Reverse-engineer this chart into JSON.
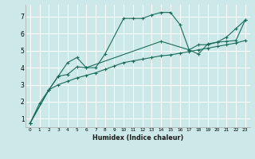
{
  "title": "",
  "xlabel": "Humidex (Indice chaleur)",
  "ylabel": "",
  "bg_color": "#cce8e8",
  "line_color": "#1a6b5a",
  "grid_color": "#ffffff",
  "xlim": [
    -0.5,
    23.5
  ],
  "ylim": [
    0.5,
    7.7
  ],
  "xticks": [
    0,
    1,
    2,
    3,
    4,
    5,
    6,
    7,
    8,
    9,
    10,
    11,
    12,
    13,
    14,
    15,
    16,
    17,
    18,
    19,
    20,
    21,
    22,
    23
  ],
  "yticks": [
    1,
    2,
    3,
    4,
    5,
    6,
    7
  ],
  "curve1_x": [
    0,
    1,
    2,
    3,
    4,
    5,
    6,
    7,
    8,
    10,
    11,
    12,
    13,
    14,
    15,
    16,
    17,
    18,
    19,
    20,
    21,
    22,
    23
  ],
  "curve1_y": [
    0.75,
    1.9,
    2.7,
    3.5,
    4.3,
    4.6,
    4.0,
    4.0,
    4.8,
    6.9,
    6.9,
    6.9,
    7.1,
    7.25,
    7.25,
    6.55,
    5.05,
    4.8,
    5.4,
    5.5,
    5.8,
    6.3,
    6.8
  ],
  "curve2_x": [
    0,
    2,
    3,
    4,
    5,
    6,
    14,
    17,
    18,
    19,
    20,
    21,
    22,
    23
  ],
  "curve2_y": [
    0.75,
    2.7,
    3.5,
    3.6,
    4.05,
    4.0,
    5.55,
    5.05,
    5.35,
    5.35,
    5.5,
    5.55,
    5.6,
    6.8
  ],
  "curve3_x": [
    0,
    2,
    3,
    4,
    5,
    6,
    7,
    8,
    9,
    10,
    11,
    12,
    13,
    14,
    15,
    16,
    17,
    18,
    19,
    20,
    21,
    22,
    23
  ],
  "curve3_y": [
    0.75,
    2.7,
    3.0,
    3.2,
    3.4,
    3.55,
    3.7,
    3.9,
    4.1,
    4.3,
    4.4,
    4.5,
    4.6,
    4.7,
    4.75,
    4.85,
    4.95,
    5.05,
    5.15,
    5.25,
    5.35,
    5.45,
    5.6
  ]
}
